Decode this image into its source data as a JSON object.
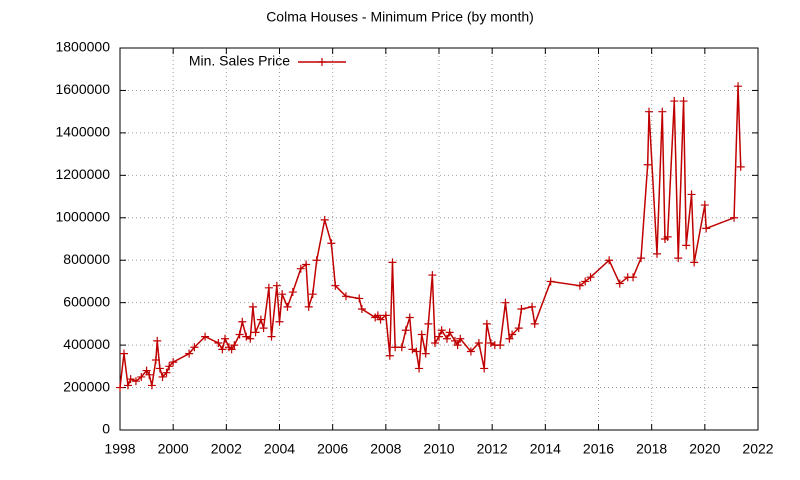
{
  "chart_data": {
    "type": "line",
    "title": "Colma Houses - Minimum Price (by month)",
    "legend": "top-left",
    "grid": true,
    "xlim": [
      1998,
      2022
    ],
    "xticks": [
      1998,
      2000,
      2002,
      2004,
      2006,
      2008,
      2010,
      2012,
      2014,
      2016,
      2018,
      2020,
      2022
    ],
    "ylim": [
      0,
      1800000
    ],
    "yticks": [
      0,
      200000,
      400000,
      600000,
      800000,
      1000000,
      1200000,
      1400000,
      1600000,
      1800000
    ],
    "series": [
      {
        "name": "Min. Sales Price",
        "color": "#c00000",
        "x": [
          1998.0,
          1998.15,
          1998.3,
          1998.4,
          1998.6,
          1998.8,
          1999.0,
          1999.1,
          1999.2,
          1999.35,
          1999.4,
          1999.5,
          1999.6,
          1999.75,
          1999.85,
          2000.0,
          2000.6,
          2000.8,
          2001.2,
          2001.7,
          2001.85,
          2001.95,
          2002.1,
          2002.2,
          2002.3,
          2002.5,
          2002.6,
          2002.75,
          2002.9,
          2003.0,
          2003.1,
          2003.3,
          2003.4,
          2003.6,
          2003.7,
          2003.9,
          2004.0,
          2004.1,
          2004.3,
          2004.5,
          2004.8,
          2005.0,
          2005.1,
          2005.25,
          2005.4,
          2005.7,
          2005.95,
          2006.1,
          2006.5,
          2007.0,
          2007.1,
          2007.6,
          2007.7,
          2007.8,
          2008.0,
          2008.15,
          2008.25,
          2008.35,
          2008.6,
          2008.75,
          2008.9,
          2009.0,
          2009.15,
          2009.25,
          2009.35,
          2009.5,
          2009.6,
          2009.75,
          2009.85,
          2010.0,
          2010.1,
          2010.3,
          2010.4,
          2010.6,
          2010.7,
          2010.8,
          2011.2,
          2011.5,
          2011.7,
          2011.8,
          2011.95,
          2012.1,
          2012.3,
          2012.5,
          2012.65,
          2012.75,
          2013.0,
          2013.1,
          2013.5,
          2013.6,
          2014.2,
          2015.3,
          2015.5,
          2015.7,
          2016.4,
          2016.8,
          2017.1,
          2017.3,
          2017.6,
          2017.85,
          2017.9,
          2018.2,
          2018.4,
          2018.5,
          2018.6,
          2018.85,
          2019.0,
          2019.2,
          2019.3,
          2019.5,
          2019.6,
          2020.0,
          2020.05,
          2021.1,
          2021.25,
          2021.35
        ],
        "values": [
          200000,
          360000,
          210000,
          240000,
          230000,
          250000,
          280000,
          260000,
          210000,
          330000,
          420000,
          290000,
          250000,
          270000,
          300000,
          320000,
          360000,
          390000,
          440000,
          410000,
          380000,
          430000,
          390000,
          380000,
          400000,
          450000,
          510000,
          440000,
          430000,
          580000,
          460000,
          520000,
          480000,
          670000,
          440000,
          680000,
          510000,
          640000,
          580000,
          650000,
          760000,
          780000,
          580000,
          640000,
          800000,
          990000,
          880000,
          680000,
          630000,
          620000,
          570000,
          530000,
          540000,
          520000,
          540000,
          350000,
          790000,
          390000,
          390000,
          470000,
          530000,
          380000,
          370000,
          290000,
          450000,
          360000,
          500000,
          730000,
          410000,
          440000,
          470000,
          430000,
          460000,
          420000,
          400000,
          430000,
          370000,
          410000,
          290000,
          500000,
          410000,
          400000,
          400000,
          600000,
          430000,
          450000,
          480000,
          570000,
          580000,
          500000,
          700000,
          680000,
          700000,
          720000,
          800000,
          690000,
          720000,
          720000,
          810000,
          1250000,
          1500000,
          830000,
          1500000,
          900000,
          910000,
          1550000,
          810000,
          1550000,
          870000,
          1110000,
          790000,
          1060000,
          950000,
          1000000,
          1620000,
          1240000
        ]
      }
    ]
  }
}
